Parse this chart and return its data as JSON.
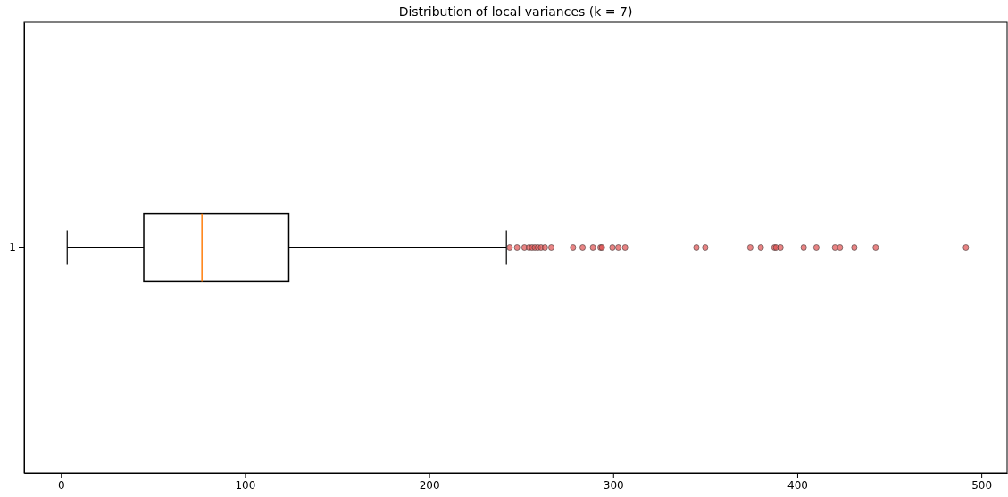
{
  "chart_data": {
    "type": "box",
    "title": "Distribution of local variances (k = 7)",
    "orientation": "horizontal",
    "categories": [
      "1"
    ],
    "series": [
      {
        "color": "#000000",
        "boxes": [
          {
            "low": 3.4,
            "q1": 45,
            "median": 76.6,
            "q3": 123.8,
            "high": 242,
            "outliers": [
              243.8,
              247.8,
              251.8,
              254.3,
              255.9,
              257.5,
              259.1,
              260.8,
              262.9,
              266.4,
              278.2,
              283.4,
              289,
              293.1,
              293.9,
              299.6,
              302.8,
              306.5,
              345.2,
              350,
              374.5,
              380.2,
              387.6,
              388.5,
              390.9,
              403.5,
              410.4,
              420.5,
              423.2,
              431,
              442.6,
              491.6
            ]
          }
        ]
      }
    ],
    "xlim": [
      -20,
      514
    ],
    "xticks": [
      0,
      100,
      200,
      300,
      400,
      500
    ]
  }
}
